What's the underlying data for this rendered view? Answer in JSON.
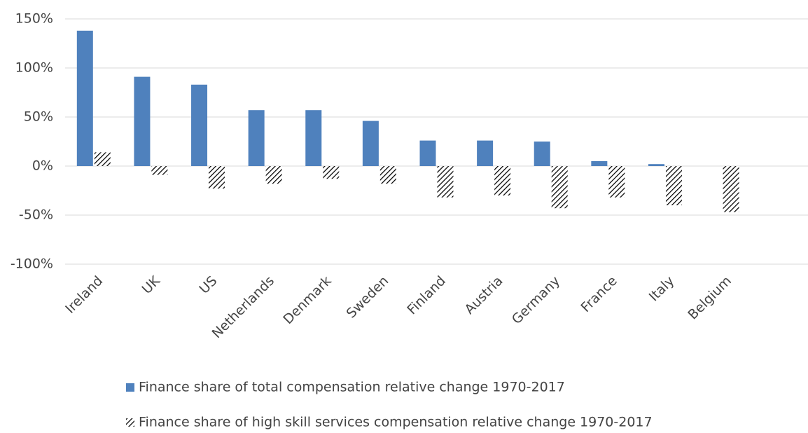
{
  "chart_data": {
    "type": "bar",
    "categories": [
      "Ireland",
      "UK",
      "US",
      "Netherlands",
      "Denmark",
      "Sweden",
      "Finland",
      "Austria",
      "Germany",
      "France",
      "Italy",
      "Belgium",
      null
    ],
    "series": [
      {
        "name": "Finance share of total compensation relative change 1970-2017",
        "color": "#4f81bd",
        "pattern": "solid",
        "values": [
          138,
          91,
          83,
          57,
          57,
          46,
          26,
          26,
          25,
          5,
          2,
          0,
          null
        ]
      },
      {
        "name": "Finance share of high skill services compensation relative change 1970-2017",
        "color": "#000000",
        "pattern": "hatch",
        "values": [
          14,
          -9,
          -23,
          -18,
          -13,
          -18,
          -32,
          -30,
          -43,
          -32,
          -40,
          -47,
          null
        ]
      }
    ],
    "ylim": [
      -100,
      150
    ],
    "yticks": [
      {
        "value": -100,
        "label": "-100%"
      },
      {
        "value": -50,
        "label": "-50%"
      },
      {
        "value": 0,
        "label": "0%"
      },
      {
        "value": 50,
        "label": "50%"
      },
      {
        "value": 100,
        "label": "100%"
      },
      {
        "value": 150,
        "label": "150%"
      }
    ],
    "grid": true,
    "legend": "bottom"
  }
}
